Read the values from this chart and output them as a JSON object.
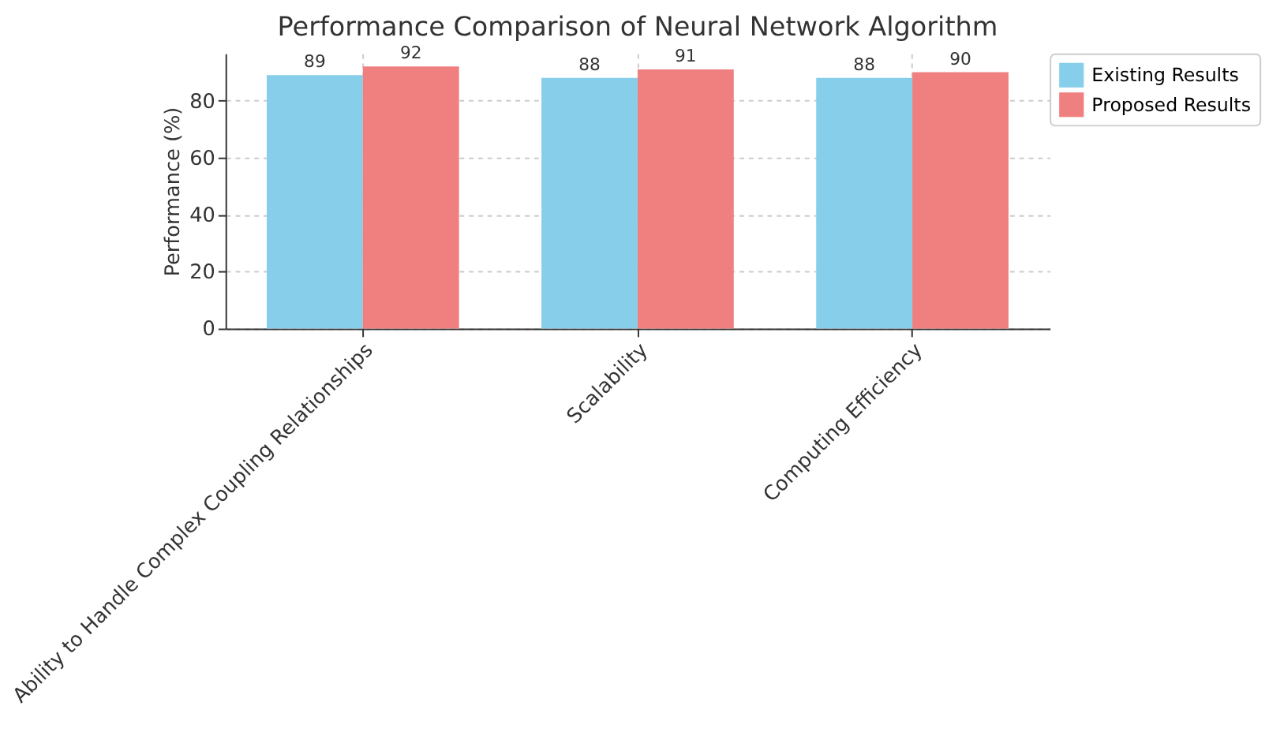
{
  "chart_data": {
    "type": "bar",
    "title": "Performance Comparison of Neural Network Algorithm",
    "ylabel": "Performance (%)",
    "categories": [
      "Ability to Handle Complex Coupling Relationships",
      "Scalability",
      "Computing Efficiency"
    ],
    "series": [
      {
        "name": "Existing Results",
        "color": "#87ceeb",
        "values": [
          89,
          88,
          88
        ]
      },
      {
        "name": "Proposed Results",
        "color": "#f08080",
        "values": [
          92,
          91,
          90
        ]
      }
    ],
    "ylim": [
      0,
      96.6
    ],
    "yticks": [
      0,
      20,
      40,
      60,
      80
    ],
    "grid": true,
    "legend": "right",
    "data_labels": true
  }
}
